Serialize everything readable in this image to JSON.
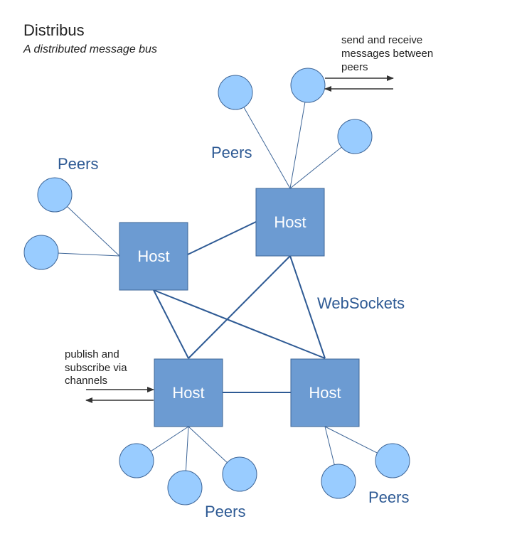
{
  "title": "Distribus",
  "subtitle": "A distributed message bus",
  "host_label": "Host",
  "peers_label": "Peers",
  "websockets_label": "WebSockets",
  "peer_note": [
    "send and receive",
    "messages between",
    "peers"
  ],
  "channel_note": [
    "publish and",
    "subscribe via",
    "channels"
  ],
  "colors": {
    "host_fill": "#6c9bd2",
    "host_stroke": "#3d6597",
    "peer_fill": "#99ccff",
    "peer_stroke": "#3d6597",
    "host_link": "#2e5a94",
    "peer_link": "#3d6597",
    "label_blue": "#2e5a94",
    "arrow": "#333333"
  }
}
